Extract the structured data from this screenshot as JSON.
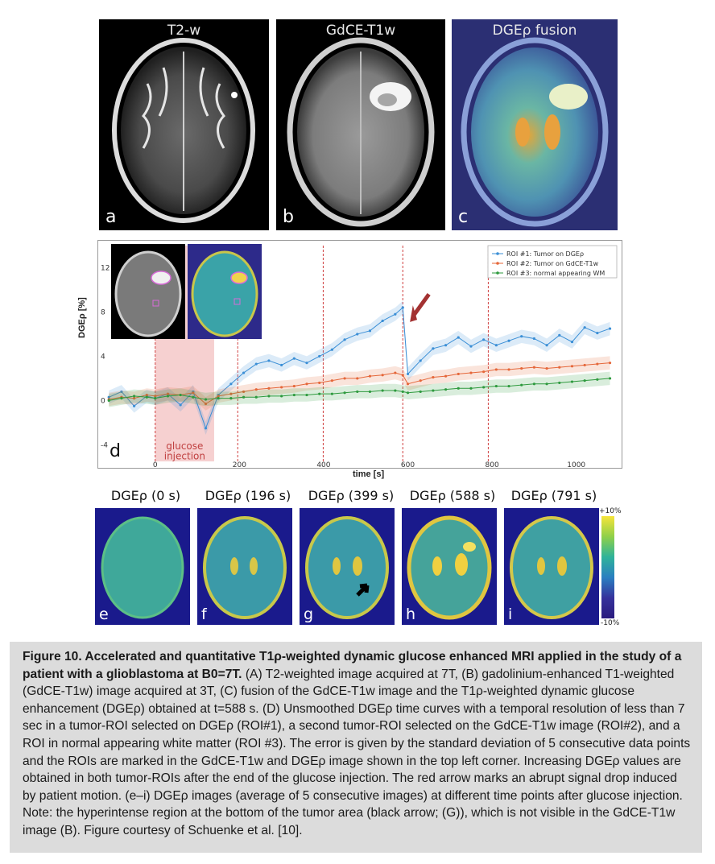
{
  "panels_top": [
    {
      "title": "T2-w",
      "label": "a"
    },
    {
      "title": "GdCE-T1w",
      "label": "b"
    },
    {
      "title": "DGEρ fusion",
      "label": "c"
    }
  ],
  "chart_data": {
    "type": "line",
    "panel_label": "d",
    "ylabel": "DGEρ [%]",
    "xlabel": "time [s]",
    "xlim": [
      -120,
      1100
    ],
    "ylim": [
      -5.5,
      14
    ],
    "xticks": [
      0,
      200,
      400,
      600,
      800,
      1000
    ],
    "yticks": [
      -4,
      0,
      4,
      8,
      12
    ],
    "legend_position": "top-right",
    "injection_window": [
      0,
      140
    ],
    "injection_label": [
      "glucose",
      "injection"
    ],
    "markers_dashed": [
      0,
      196,
      399,
      588,
      791
    ],
    "series": [
      {
        "name": "ROI #1: Tumor on DGEρ",
        "color": "#3b8fd6",
        "x": [
          -110,
          -80,
          -50,
          -20,
          0,
          30,
          60,
          90,
          120,
          150,
          180,
          210,
          240,
          270,
          300,
          330,
          360,
          390,
          420,
          450,
          480,
          510,
          540,
          570,
          588,
          600,
          630,
          660,
          690,
          720,
          750,
          780,
          810,
          840,
          870,
          900,
          930,
          960,
          990,
          1020,
          1050,
          1080
        ],
        "y": [
          0.3,
          0.8,
          -0.5,
          0.4,
          0.2,
          0.6,
          -0.4,
          0.8,
          -2.5,
          0.5,
          1.5,
          2.5,
          3.3,
          3.6,
          3.2,
          3.8,
          3.4,
          4.0,
          4.6,
          5.5,
          6.0,
          6.3,
          7.2,
          7.8,
          8.4,
          2.4,
          3.6,
          4.7,
          5.0,
          5.7,
          4.9,
          5.5,
          5.0,
          5.4,
          5.8,
          5.6,
          5.0,
          5.9,
          5.3,
          6.6,
          6.1,
          6.5
        ]
      },
      {
        "name": "ROI #2: Tumor on GdCE-T1w",
        "color": "#e5673a",
        "x": [
          -110,
          -80,
          -50,
          -20,
          0,
          30,
          60,
          90,
          120,
          150,
          180,
          210,
          240,
          270,
          300,
          330,
          360,
          390,
          420,
          450,
          480,
          510,
          540,
          570,
          588,
          600,
          630,
          660,
          690,
          720,
          750,
          780,
          810,
          840,
          870,
          900,
          930,
          960,
          990,
          1020,
          1050,
          1080
        ],
        "y": [
          0.1,
          0.3,
          0.2,
          0.5,
          0.4,
          0.6,
          0.5,
          0.7,
          -0.3,
          0.4,
          0.6,
          0.8,
          1.0,
          1.1,
          1.2,
          1.3,
          1.5,
          1.6,
          1.8,
          2.0,
          2.0,
          2.2,
          2.3,
          2.5,
          2.3,
          1.5,
          1.8,
          2.1,
          2.2,
          2.4,
          2.5,
          2.6,
          2.8,
          2.8,
          2.9,
          3.0,
          2.9,
          3.0,
          3.1,
          3.2,
          3.3,
          3.4
        ]
      },
      {
        "name": "ROI #3: normal appearing WM",
        "color": "#2e9a3e",
        "x": [
          -110,
          -80,
          -50,
          -20,
          0,
          30,
          60,
          90,
          120,
          150,
          180,
          210,
          240,
          270,
          300,
          330,
          360,
          390,
          420,
          450,
          480,
          510,
          540,
          570,
          588,
          600,
          630,
          660,
          690,
          720,
          750,
          780,
          810,
          840,
          870,
          900,
          930,
          960,
          990,
          1020,
          1050,
          1080
        ],
        "y": [
          0.0,
          0.2,
          0.4,
          0.3,
          0.2,
          0.4,
          0.5,
          0.3,
          0.1,
          0.2,
          0.2,
          0.3,
          0.3,
          0.4,
          0.4,
          0.5,
          0.5,
          0.6,
          0.6,
          0.7,
          0.8,
          0.8,
          0.9,
          0.9,
          0.8,
          0.7,
          0.8,
          0.9,
          1.0,
          1.1,
          1.1,
          1.2,
          1.3,
          1.3,
          1.4,
          1.5,
          1.5,
          1.6,
          1.7,
          1.8,
          1.9,
          2.0
        ]
      }
    ]
  },
  "panels_bottom": [
    {
      "title": "DGEρ (0 s)",
      "label": "e"
    },
    {
      "title": "DGEρ (196 s)",
      "label": "f"
    },
    {
      "title": "DGEρ (399 s)",
      "label": "g"
    },
    {
      "title": "DGEρ (588 s)",
      "label": "h"
    },
    {
      "title": "DGEρ (791 s)",
      "label": "i"
    }
  ],
  "colorbar": {
    "top": "+10%",
    "bottom": "-10%"
  },
  "caption": {
    "bold": "Figure 10. Accelerated and quantitative T1ρ-weighted dynamic glucose enhanced MRI applied in the study of a patient with a glioblastoma at B0=7T.",
    "body": " (A) T2-weighted image acquired at 7T, (B) gadolinium-enhanced T1-weighted (GdCE-T1w) image acquired at 3T, (C) fusion of the GdCE-T1w image and the T1ρ-weighted dynamic glucose enhancement (DGEρ) obtained at t=588 s. (D) Unsmoothed DGEρ time curves with a temporal resolution of less than 7 sec in a tumor-ROI selected on DGEρ (ROI#1), a second tumor-ROI selected on the GdCE-T1w image (ROI#2), and a ROI in normal appearing white matter (ROI #3). The error is given by the standard deviation of 5 consecutive data points and the ROIs are marked in the GdCE-T1w and DGEρ image shown in the top left corner. Increasing DGEρ values are obtained in both tumor-ROIs after the end of the glucose injection. The red arrow marks an abrupt signal drop induced by patient motion. (e–i) DGEρ images (average of 5 consecutive images) at different time points after glucose injection.",
    "note": "Note: the hyperintense region at the bottom of the tumor area (black arrow; (G)), which is not visible in the GdCE-T1w image (B). Figure courtesy of Schuenke et al. [10]."
  }
}
